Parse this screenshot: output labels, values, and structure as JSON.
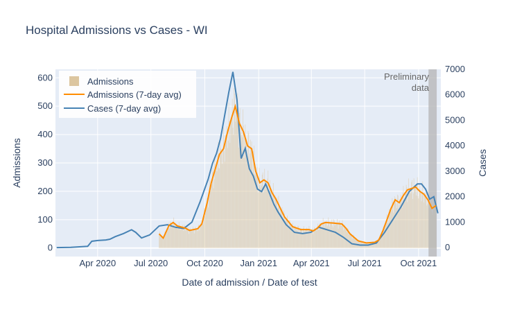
{
  "chart_data": {
    "type": "bar+line",
    "title": "Hospital Admissions vs Cases - WI",
    "xlabel": "Date of admission / Date of test",
    "ylabel_left": "Admissions",
    "ylabel_right": "Cases",
    "x_range": [
      "2020-01-20",
      "2021-11-08"
    ],
    "y_left_range": [
      -30,
      630
    ],
    "y_right_range": [
      -350,
      7000
    ],
    "x_ticks": [
      "Apr 2020",
      "Jul 2020",
      "Oct 2020",
      "Jan 2021",
      "Apr 2021",
      "Jul 2021",
      "Oct 2021"
    ],
    "y_left_ticks": [
      "0",
      "100",
      "200",
      "300",
      "400",
      "500",
      "600"
    ],
    "y_right_ticks": [
      "0",
      "1000",
      "2000",
      "3000",
      "4000",
      "5000",
      "6000",
      "7000"
    ],
    "grid": true,
    "legend": {
      "placement": "top-left",
      "entries": [
        "Admissions",
        "Admissions (7-day avg)",
        "Cases (7-day avg)"
      ]
    },
    "annotation": {
      "text_lines": [
        "Preliminary",
        "data"
      ],
      "shaded_region": [
        "2021-10-18",
        "2021-11-01"
      ]
    },
    "colors": {
      "admissions_bars": "#dcc6a0",
      "admissions_avg": "#ff8c00",
      "cases_avg": "#4682b4",
      "shade": "#b4b4b4",
      "plot_bg": "#e5ecf6"
    },
    "series": [
      {
        "name": "Admissions (7-day avg)",
        "axis": "left",
        "points": [
          [
            "2020-07-15",
            50
          ],
          [
            "2020-07-22",
            35
          ],
          [
            "2020-08-01",
            80
          ],
          [
            "2020-08-08",
            90
          ],
          [
            "2020-08-15",
            78
          ],
          [
            "2020-08-29",
            70
          ],
          [
            "2020-09-05",
            62
          ],
          [
            "2020-09-19",
            68
          ],
          [
            "2020-09-26",
            85
          ],
          [
            "2020-10-05",
            160
          ],
          [
            "2020-10-12",
            230
          ],
          [
            "2020-10-19",
            280
          ],
          [
            "2020-10-26",
            330
          ],
          [
            "2020-11-02",
            350
          ],
          [
            "2020-11-09",
            410
          ],
          [
            "2020-11-16",
            460
          ],
          [
            "2020-11-22",
            500
          ],
          [
            "2020-11-29",
            440
          ],
          [
            "2020-12-06",
            410
          ],
          [
            "2020-12-13",
            360
          ],
          [
            "2020-12-20",
            350
          ],
          [
            "2020-12-27",
            270
          ],
          [
            "2021-01-03",
            230
          ],
          [
            "2021-01-10",
            240
          ],
          [
            "2021-01-17",
            230
          ],
          [
            "2021-01-24",
            195
          ],
          [
            "2021-01-31",
            170
          ],
          [
            "2021-02-07",
            140
          ],
          [
            "2021-02-14",
            110
          ],
          [
            "2021-02-28",
            75
          ],
          [
            "2021-03-14",
            65
          ],
          [
            "2021-03-28",
            65
          ],
          [
            "2021-04-04",
            60
          ],
          [
            "2021-04-11",
            70
          ],
          [
            "2021-04-18",
            85
          ],
          [
            "2021-04-25",
            90
          ],
          [
            "2021-05-09",
            88
          ],
          [
            "2021-05-23",
            85
          ],
          [
            "2021-05-30",
            70
          ],
          [
            "2021-06-06",
            50
          ],
          [
            "2021-06-20",
            25
          ],
          [
            "2021-07-04",
            18
          ],
          [
            "2021-07-18",
            20
          ],
          [
            "2021-07-25",
            28
          ],
          [
            "2021-08-01",
            60
          ],
          [
            "2021-08-08",
            100
          ],
          [
            "2021-08-15",
            140
          ],
          [
            "2021-08-22",
            170
          ],
          [
            "2021-08-29",
            160
          ],
          [
            "2021-09-05",
            185
          ],
          [
            "2021-09-12",
            205
          ],
          [
            "2021-09-19",
            210
          ],
          [
            "2021-09-26",
            215
          ],
          [
            "2021-10-03",
            200
          ],
          [
            "2021-10-10",
            190
          ],
          [
            "2021-10-17",
            170
          ],
          [
            "2021-10-24",
            140
          ],
          [
            "2021-10-31",
            150
          ]
        ]
      },
      {
        "name": "Cases (7-day avg)",
        "axis": "right",
        "points": [
          [
            "2020-01-22",
            0
          ],
          [
            "2020-02-15",
            10
          ],
          [
            "2020-03-01",
            30
          ],
          [
            "2020-03-15",
            50
          ],
          [
            "2020-03-22",
            250
          ],
          [
            "2020-04-01",
            280
          ],
          [
            "2020-04-15",
            300
          ],
          [
            "2020-04-22",
            330
          ],
          [
            "2020-05-01",
            430
          ],
          [
            "2020-05-15",
            550
          ],
          [
            "2020-05-29",
            700
          ],
          [
            "2020-06-05",
            600
          ],
          [
            "2020-06-15",
            380
          ],
          [
            "2020-06-29",
            500
          ],
          [
            "2020-07-15",
            850
          ],
          [
            "2020-07-29",
            900
          ],
          [
            "2020-08-12",
            800
          ],
          [
            "2020-08-26",
            750
          ],
          [
            "2020-09-09",
            1000
          ],
          [
            "2020-09-23",
            1800
          ],
          [
            "2020-10-07",
            2700
          ],
          [
            "2020-10-14",
            3300
          ],
          [
            "2020-10-21",
            3700
          ],
          [
            "2020-10-28",
            4300
          ],
          [
            "2020-11-04",
            5200
          ],
          [
            "2020-11-11",
            6100
          ],
          [
            "2020-11-18",
            6900
          ],
          [
            "2020-11-25",
            5800
          ],
          [
            "2020-12-02",
            3500
          ],
          [
            "2020-12-09",
            3900
          ],
          [
            "2020-12-16",
            3100
          ],
          [
            "2020-12-23",
            2800
          ],
          [
            "2020-12-30",
            2300
          ],
          [
            "2021-01-06",
            2200
          ],
          [
            "2021-01-13",
            2500
          ],
          [
            "2021-01-20",
            2100
          ],
          [
            "2021-01-27",
            1700
          ],
          [
            "2021-02-03",
            1400
          ],
          [
            "2021-02-17",
            900
          ],
          [
            "2021-03-03",
            600
          ],
          [
            "2021-03-17",
            550
          ],
          [
            "2021-03-31",
            600
          ],
          [
            "2021-04-14",
            800
          ],
          [
            "2021-04-28",
            700
          ],
          [
            "2021-05-12",
            600
          ],
          [
            "2021-05-26",
            400
          ],
          [
            "2021-06-09",
            150
          ],
          [
            "2021-06-23",
            100
          ],
          [
            "2021-07-07",
            100
          ],
          [
            "2021-07-21",
            180
          ],
          [
            "2021-08-04",
            600
          ],
          [
            "2021-08-18",
            1100
          ],
          [
            "2021-09-01",
            1600
          ],
          [
            "2021-09-15",
            2200
          ],
          [
            "2021-09-29",
            2500
          ],
          [
            "2021-10-06",
            2500
          ],
          [
            "2021-10-13",
            2300
          ],
          [
            "2021-10-20",
            1900
          ],
          [
            "2021-10-27",
            2000
          ],
          [
            "2021-11-03",
            1350
          ]
        ]
      }
    ]
  }
}
